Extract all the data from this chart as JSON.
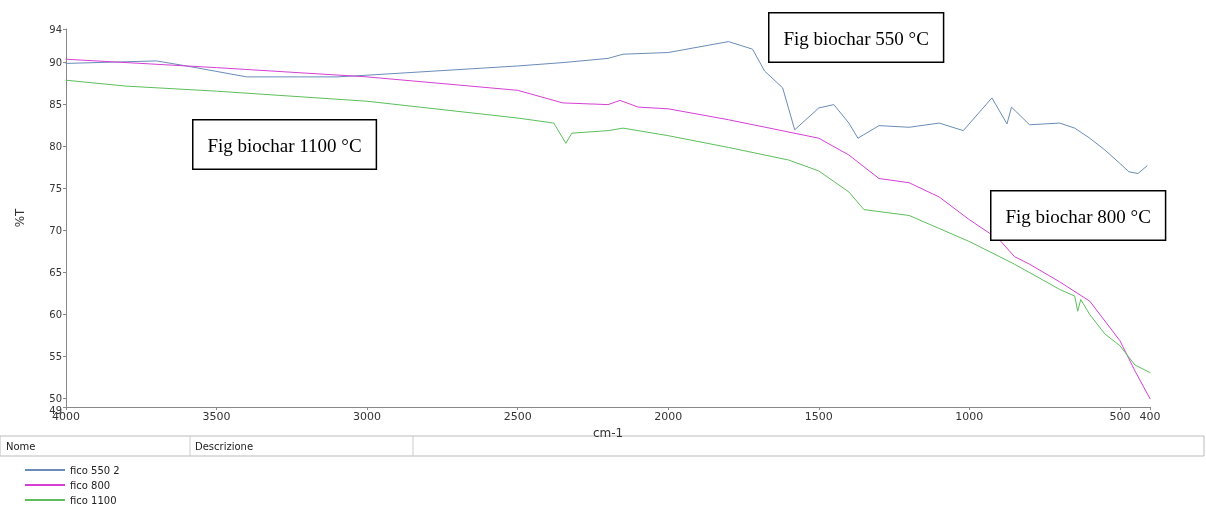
{
  "chart_data": {
    "type": "line",
    "xlabel": "cm-1",
    "ylabel": "%T",
    "legend_title": "Nome",
    "legend": "bottom left",
    "grid": false,
    "marker": "none",
    "line_style": "solid",
    "xlim": [
      4000,
      400
    ],
    "xticks": [
      4000,
      3500,
      3000,
      2500,
      2000,
      1500,
      1000,
      500,
      400
    ],
    "ylim": [
      49,
      94
    ],
    "yticks": [
      49,
      50,
      55,
      60,
      65,
      70,
      75,
      80,
      85,
      90,
      94
    ],
    "annotations": [
      "Fig biochar 550 °C",
      "Fig biochar 1100 °C",
      "Fig biochar 800 °C",
      "Descrizione"
    ],
    "series": [
      {
        "name": "fico 550 2",
        "color": "#6a8cb8",
        "x": [
          4000,
          3700,
          3600,
          3400,
          3100,
          3000,
          2500,
          2350,
          2200,
          2150,
          2000,
          1800,
          1720,
          1680,
          1620,
          1580,
          1500,
          1450,
          1400,
          1370,
          1300,
          1200,
          1100,
          1020,
          925,
          875,
          860,
          800,
          700,
          650,
          600,
          550,
          500,
          470,
          440,
          420,
          410
        ],
        "values": [
          89.9,
          90.2,
          89.6,
          88.3,
          88.3,
          88.5,
          89.6,
          90,
          90.5,
          91,
          91.2,
          92.5,
          91.6,
          89,
          87,
          82,
          84.6,
          85,
          82.8,
          81,
          82.5,
          82.3,
          82.8,
          81.9,
          85.8,
          82.7,
          84.7,
          82.6,
          82.8,
          82.2,
          81,
          79.6,
          78,
          77,
          76.8,
          77.4,
          77.7
        ]
      },
      {
        "name": "fico 800",
        "color": "#d63fd6",
        "x": [
          4000,
          3500,
          3000,
          2500,
          2350,
          2200,
          2160,
          2100,
          2000,
          1800,
          1500,
          1400,
          1300,
          1200,
          1100,
          1000,
          900,
          850,
          800,
          700,
          600,
          500,
          450,
          400
        ],
        "values": [
          90.4,
          89.4,
          88.3,
          86.7,
          85.2,
          85,
          85.5,
          84.7,
          84.5,
          83.2,
          81,
          79,
          76.2,
          75.7,
          74,
          71.3,
          68.9,
          66.9,
          66,
          63.9,
          61.6,
          56.9,
          53.3,
          50
        ]
      },
      {
        "name": "fico 1100",
        "color": "#5cbf5c",
        "x": [
          4000,
          3800,
          3500,
          3000,
          2500,
          2380,
          2340,
          2320,
          2200,
          2150,
          2000,
          1800,
          1600,
          1500,
          1400,
          1350,
          1200,
          1000,
          850,
          700,
          650,
          640,
          630,
          600,
          550,
          500,
          450,
          400
        ],
        "values": [
          87.9,
          87.2,
          86.6,
          85.4,
          83.4,
          82.8,
          80.4,
          81.6,
          81.9,
          82.2,
          81.3,
          79.9,
          78.4,
          77.1,
          74.6,
          72.5,
          71.8,
          68.7,
          66,
          63,
          62.2,
          60.4,
          61.8,
          60,
          57.7,
          56.3,
          54,
          53.1
        ]
      }
    ]
  }
}
